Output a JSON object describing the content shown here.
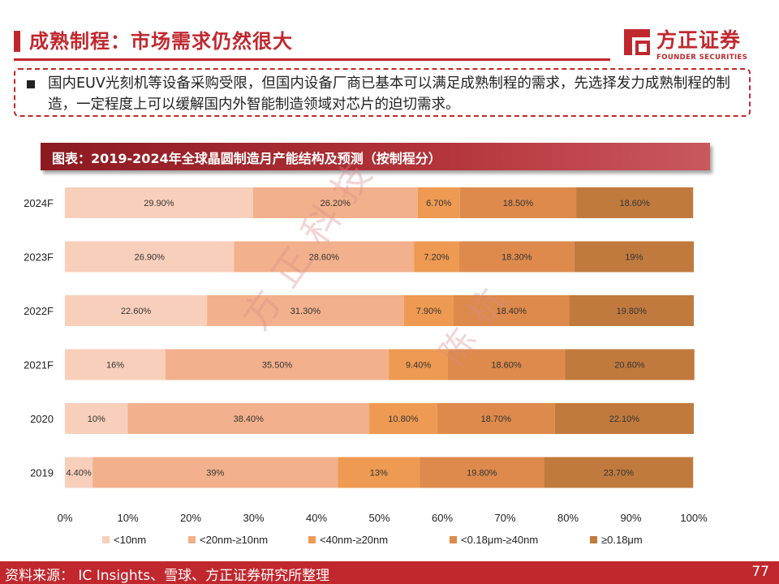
{
  "header": {
    "title": "成熟制程：市场需求仍然很大",
    "logo_cn": "方正证券",
    "logo_en": "FOUNDER SECURITIES"
  },
  "note": {
    "text": "国内EUV光刻机等设备采购受限，但国内设备厂商已基本可以满足成熟制程的需求，先选择发力成熟制程的制造，一定程度上可以缓解国内外智能制造领域对芯片的迫切需求。"
  },
  "chart_title": "图表：2019-2024年全球晶圆制造月产能结构及预测（按制程分）",
  "watermark": {
    "line1": "方正科技",
    "line2": "陈杭"
  },
  "chart_data": {
    "type": "bar",
    "orientation": "horizontal",
    "stacked": true,
    "normalized": true,
    "categories": [
      "2024F",
      "2023F",
      "2022F",
      "2021F",
      "2020",
      "2019"
    ],
    "series": [
      {
        "name": "<10nm",
        "values": [
          29.9,
          26.9,
          22.6,
          16,
          10,
          4.4
        ],
        "labels": [
          "29.90%",
          "26.90%",
          "22.60%",
          "16%",
          "10%",
          "4.40%"
        ],
        "color": "#f8cfbb"
      },
      {
        "name": "<20nm-≥10nm",
        "values": [
          26.2,
          28.6,
          31.3,
          35.5,
          38.4,
          39
        ],
        "labels": [
          "26.20%",
          "28.60%",
          "31.30%",
          "35.50%",
          "38.40%",
          "39%"
        ],
        "color": "#f2b08c"
      },
      {
        "name": "<40nm-≥20nm",
        "values": [
          6.7,
          7.2,
          7.9,
          9.4,
          10.8,
          13
        ],
        "labels": [
          "6.70%",
          "7.20%",
          "7.90%",
          "9.40%",
          "10.80%",
          "13%"
        ],
        "color": "#ee9a52"
      },
      {
        "name": "<0.18μm-≥40nm",
        "values": [
          18.5,
          18.3,
          18.4,
          18.6,
          18.7,
          19.8
        ],
        "labels": [
          "18.50%",
          "18.30%",
          "18.40%",
          "18.60%",
          "18.70%",
          "19.80%"
        ],
        "color": "#dd8a4c"
      },
      {
        "name": "≥0.18μm",
        "values": [
          18.6,
          19,
          19.8,
          20.6,
          22.1,
          23.7
        ],
        "labels": [
          "18.60%",
          "19%",
          "19.80%",
          "20.60%",
          "22.10%",
          "23.70%"
        ],
        "color": "#c07a3e"
      }
    ],
    "xlim": [
      0,
      100
    ],
    "xticks": [
      "0%",
      "10%",
      "20%",
      "30%",
      "40%",
      "50%",
      "60%",
      "70%",
      "80%",
      "90%",
      "100%"
    ],
    "legend_position": "bottom",
    "grid": false
  },
  "footer": {
    "source": "资料来源： IC Insights、雪球、方正证券研究所整理",
    "page": "77"
  }
}
